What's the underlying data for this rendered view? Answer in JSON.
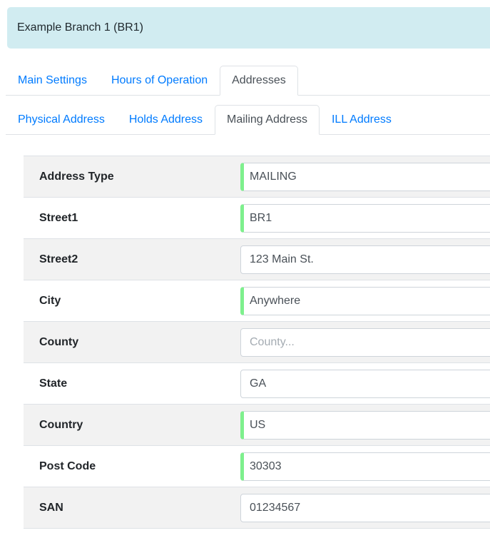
{
  "header": {
    "title": "Example Branch 1 (BR1)"
  },
  "tabs": {
    "items": [
      {
        "label": "Main Settings",
        "active": false
      },
      {
        "label": "Hours of Operation",
        "active": false
      },
      {
        "label": "Addresses",
        "active": true
      }
    ]
  },
  "subtabs": {
    "items": [
      {
        "label": "Physical Address",
        "active": false
      },
      {
        "label": "Holds Address",
        "active": false
      },
      {
        "label": "Mailing Address",
        "active": true
      },
      {
        "label": "ILL Address",
        "active": false
      }
    ]
  },
  "form": {
    "rows": [
      {
        "label": "Address Type",
        "value": "MAILING",
        "valid": true
      },
      {
        "label": "Street1",
        "value": "BR1",
        "valid": true
      },
      {
        "label": "Street2",
        "value": "123 Main St.",
        "valid": false
      },
      {
        "label": "City",
        "value": "Anywhere",
        "valid": true
      },
      {
        "label": "County",
        "value": "",
        "placeholder": "County...",
        "valid": false
      },
      {
        "label": "State",
        "value": "GA",
        "valid": false
      },
      {
        "label": "Country",
        "value": "US",
        "valid": true
      },
      {
        "label": "Post Code",
        "value": "30303",
        "valid": true
      },
      {
        "label": "SAN",
        "value": "01234567",
        "valid": false
      }
    ]
  },
  "colors": {
    "header_bg": "#d1ecf1",
    "link": "#007bff",
    "active_tab_text": "#495057",
    "valid_border_green": "#7ef08d",
    "stripe": "#f2f2f2",
    "divider": "#dee2e6",
    "input_border": "#ced4da"
  }
}
